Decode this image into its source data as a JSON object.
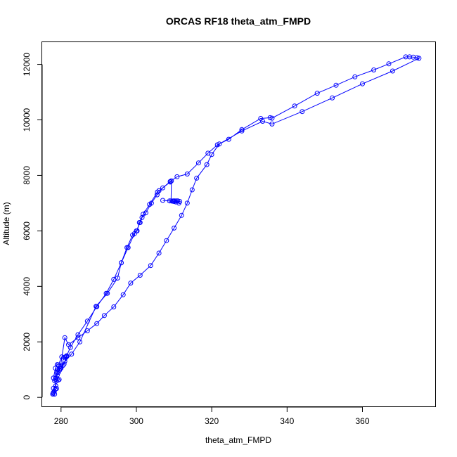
{
  "chart_data": {
    "type": "scatter",
    "title": "ORCAS RF18 theta_atm_FMPD",
    "xlabel": "theta_atm_FMPD",
    "ylabel": "Altitude (m)",
    "xlim": [
      275,
      379.5
    ],
    "ylim": [
      -350,
      12800
    ],
    "xticks": [
      280,
      300,
      320,
      340,
      360
    ],
    "yticks": [
      0,
      2000,
      4000,
      6000,
      8000,
      10000,
      12000
    ],
    "grid": false,
    "legend": "none",
    "series": [
      {
        "color": "#0000ff",
        "marker": "open-circle",
        "line": true,
        "points": [
          [
            277.8,
            120
          ],
          [
            277.9,
            150
          ],
          [
            278.0,
            180
          ],
          [
            278.2,
            220
          ],
          [
            278.5,
            290
          ],
          [
            278.8,
            320
          ],
          [
            278.6,
            420
          ],
          [
            278.3,
            600
          ],
          [
            278.7,
            700
          ],
          [
            279.0,
            800
          ],
          [
            279.3,
            900
          ],
          [
            279.6,
            980
          ],
          [
            280.0,
            1050
          ],
          [
            280.5,
            1150
          ],
          [
            281.0,
            1300
          ],
          [
            281.3,
            1460
          ],
          [
            281.5,
            1500
          ],
          [
            282.5,
            1800
          ],
          [
            284.5,
            2260
          ],
          [
            287.0,
            2750
          ],
          [
            289.5,
            3270
          ],
          [
            292.0,
            3750
          ],
          [
            294.0,
            4250
          ],
          [
            296.0,
            4850
          ],
          [
            297.5,
            5400
          ],
          [
            299.0,
            5850
          ],
          [
            300.0,
            6000
          ],
          [
            301.0,
            6300
          ],
          [
            301.5,
            6480
          ],
          [
            302.5,
            6650
          ],
          [
            304.0,
            7000
          ],
          [
            305.5,
            7300
          ],
          [
            307.0,
            7550
          ],
          [
            309.0,
            7780
          ],
          [
            310.8,
            7950
          ],
          [
            313.5,
            8050
          ],
          [
            316.5,
            8450
          ],
          [
            319.0,
            8800
          ],
          [
            321.5,
            9100
          ],
          [
            324.5,
            9300
          ],
          [
            328.0,
            9650
          ],
          [
            333.0,
            10050
          ],
          [
            335.5,
            10080
          ],
          [
            336.0,
            10060
          ],
          [
            342.0,
            10500
          ],
          [
            348.0,
            10960
          ],
          [
            353.0,
            11250
          ],
          [
            358.0,
            11550
          ],
          [
            363.0,
            11800
          ],
          [
            367.0,
            12020
          ],
          [
            371.5,
            12270
          ],
          [
            372.5,
            12270
          ],
          [
            373.5,
            12260
          ],
          [
            374.5,
            12240
          ],
          [
            375.0,
            12220
          ],
          [
            368.0,
            11760
          ],
          [
            360.0,
            11300
          ],
          [
            352.0,
            10790
          ],
          [
            344.0,
            10300
          ],
          [
            336.0,
            9850
          ],
          [
            333.5,
            9950
          ],
          [
            328.0,
            9600
          ],
          [
            322.0,
            9130
          ],
          [
            320.0,
            8750
          ],
          [
            318.7,
            8390
          ],
          [
            316.0,
            7900
          ],
          [
            314.8,
            7480
          ],
          [
            313.5,
            7000
          ],
          [
            312.0,
            6560
          ],
          [
            310.0,
            6100
          ],
          [
            308.0,
            5650
          ],
          [
            306.0,
            5200
          ],
          [
            303.8,
            4750
          ],
          [
            301.0,
            4400
          ],
          [
            298.5,
            4120
          ],
          [
            296.5,
            3700
          ],
          [
            294.0,
            3260
          ],
          [
            291.5,
            2950
          ],
          [
            289.5,
            2660
          ],
          [
            287.0,
            2400
          ],
          [
            284.5,
            2150
          ],
          [
            282.0,
            1900
          ],
          [
            281.0,
            2150
          ],
          [
            279.8,
            1050
          ],
          [
            279.0,
            900
          ],
          [
            278.5,
            650
          ],
          [
            279.2,
            620
          ],
          [
            279.5,
            640
          ],
          [
            278.0,
            330
          ],
          [
            278.3,
            120
          ]
        ]
      },
      {
        "color": "#0000ff",
        "marker": "open-circle",
        "line": true,
        "points": [
          [
            278.0,
            700
          ],
          [
            278.5,
            1050
          ],
          [
            279.0,
            1180
          ],
          [
            279.3,
            1170
          ],
          [
            280.2,
            1460
          ],
          [
            281.0,
            1450
          ],
          [
            281.5,
            1470
          ],
          [
            280.8,
            1200
          ],
          [
            280.0,
            1120
          ],
          [
            279.2,
            1000
          ],
          [
            282.8,
            1560
          ],
          [
            285.0,
            2000
          ],
          [
            289.3,
            3280
          ],
          [
            292.3,
            3750
          ],
          [
            295.0,
            4300
          ],
          [
            296.0,
            4850
          ],
          [
            297.8,
            5400
          ],
          [
            299.5,
            5900
          ],
          [
            300.2,
            6000
          ],
          [
            300.8,
            6300
          ],
          [
            301.8,
            6600
          ],
          [
            303.5,
            6950
          ],
          [
            305.6,
            7400
          ],
          [
            306.0,
            7450
          ],
          [
            309.0,
            7760
          ],
          [
            309.3,
            7800
          ],
          [
            309.2,
            7080
          ],
          [
            309.8,
            7080
          ],
          [
            310.2,
            7080
          ],
          [
            310.6,
            7080
          ],
          [
            311.0,
            7080
          ],
          [
            311.3,
            7000
          ],
          [
            311.5,
            7060
          ],
          [
            310.5,
            7040
          ],
          [
            310.0,
            7060
          ],
          [
            309.6,
            7070
          ],
          [
            308.8,
            7080
          ],
          [
            307.0,
            7100
          ]
        ]
      }
    ]
  }
}
